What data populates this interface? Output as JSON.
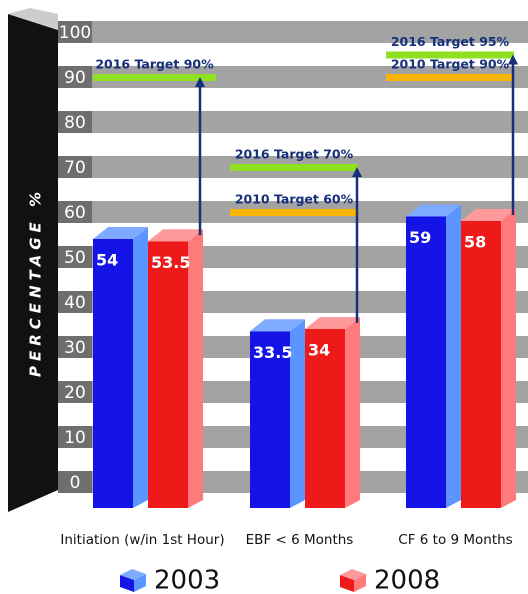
{
  "chart_data": {
    "type": "bar3d",
    "y_label": "PERCENTAGE %",
    "categories": [
      "Initiation (w/in 1st Hour)",
      "EBF < 6 Months",
      "CF 6 to 9 Months"
    ],
    "series": [
      {
        "name": "2003",
        "color": "#1414e6",
        "values": [
          54,
          33.5,
          59
        ]
      },
      {
        "name": "2008",
        "color": "#ee1a1a",
        "values": [
          53.5,
          34,
          58
        ]
      }
    ],
    "targets": [
      [
        {
          "label": "2016 Target 90%",
          "value": 90,
          "color": "#8ee020"
        }
      ],
      [
        {
          "label": "2016 Target 70%",
          "value": 70,
          "color": "#8ee020"
        },
        {
          "label": "2010 Target 60%",
          "value": 60,
          "color": "#f7b500"
        }
      ],
      [
        {
          "label": "2016 Target 95%",
          "value": 95,
          "color": "#8ee020"
        },
        {
          "label": "2010 Target 90%",
          "value": 90,
          "color": "#f7b500"
        }
      ]
    ],
    "ylim": [
      0,
      100
    ],
    "yticks": [
      0,
      10,
      20,
      30,
      40,
      50,
      60,
      70,
      80,
      90,
      100
    ]
  }
}
